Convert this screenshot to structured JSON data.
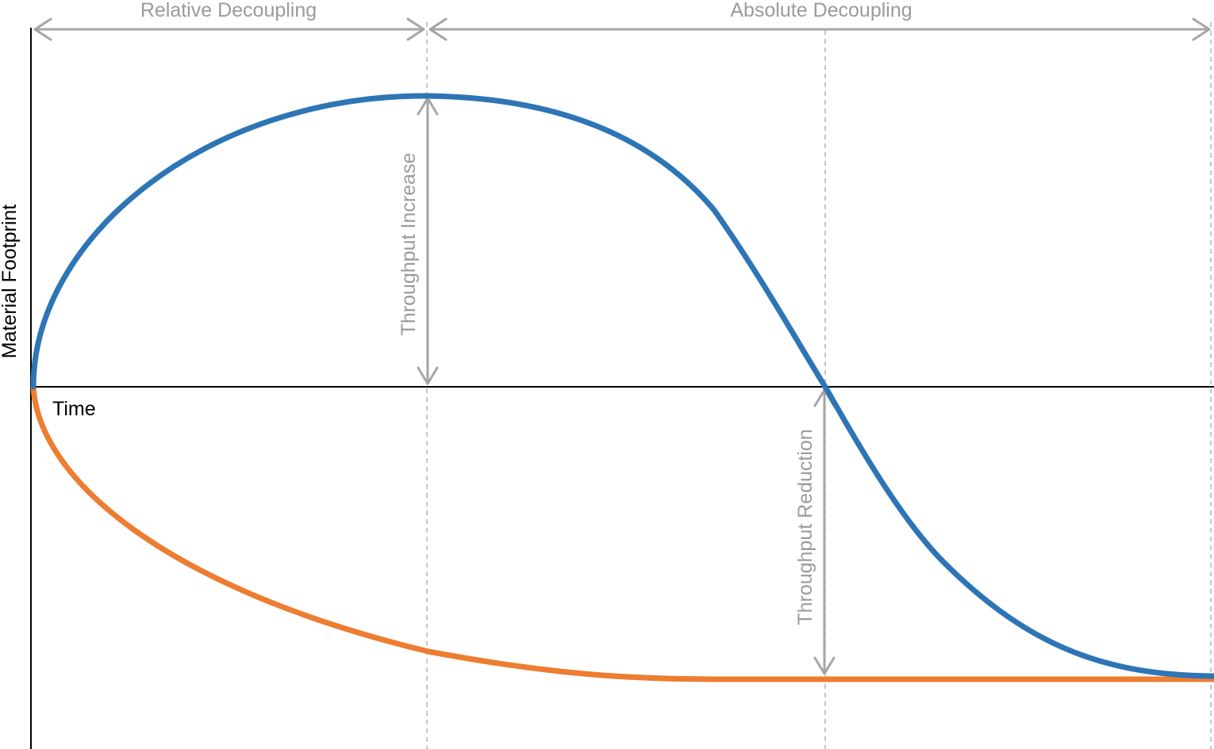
{
  "labels": {
    "relative_decoupling": "Relative Decoupling",
    "absolute_decoupling": "Absolute Decoupling",
    "throughput_increase": "Throughput Increase",
    "throughput_reduction": "Throughput Reduction",
    "y_axis": "Material Footprint",
    "x_axis": "Time"
  },
  "colors": {
    "material_footprint_curve": "#2e75b6",
    "throughput_curve": "#ed7d31",
    "annotation": "#a6a6a6",
    "guide_line": "#b3b3b3",
    "axis": "#000000"
  }
}
